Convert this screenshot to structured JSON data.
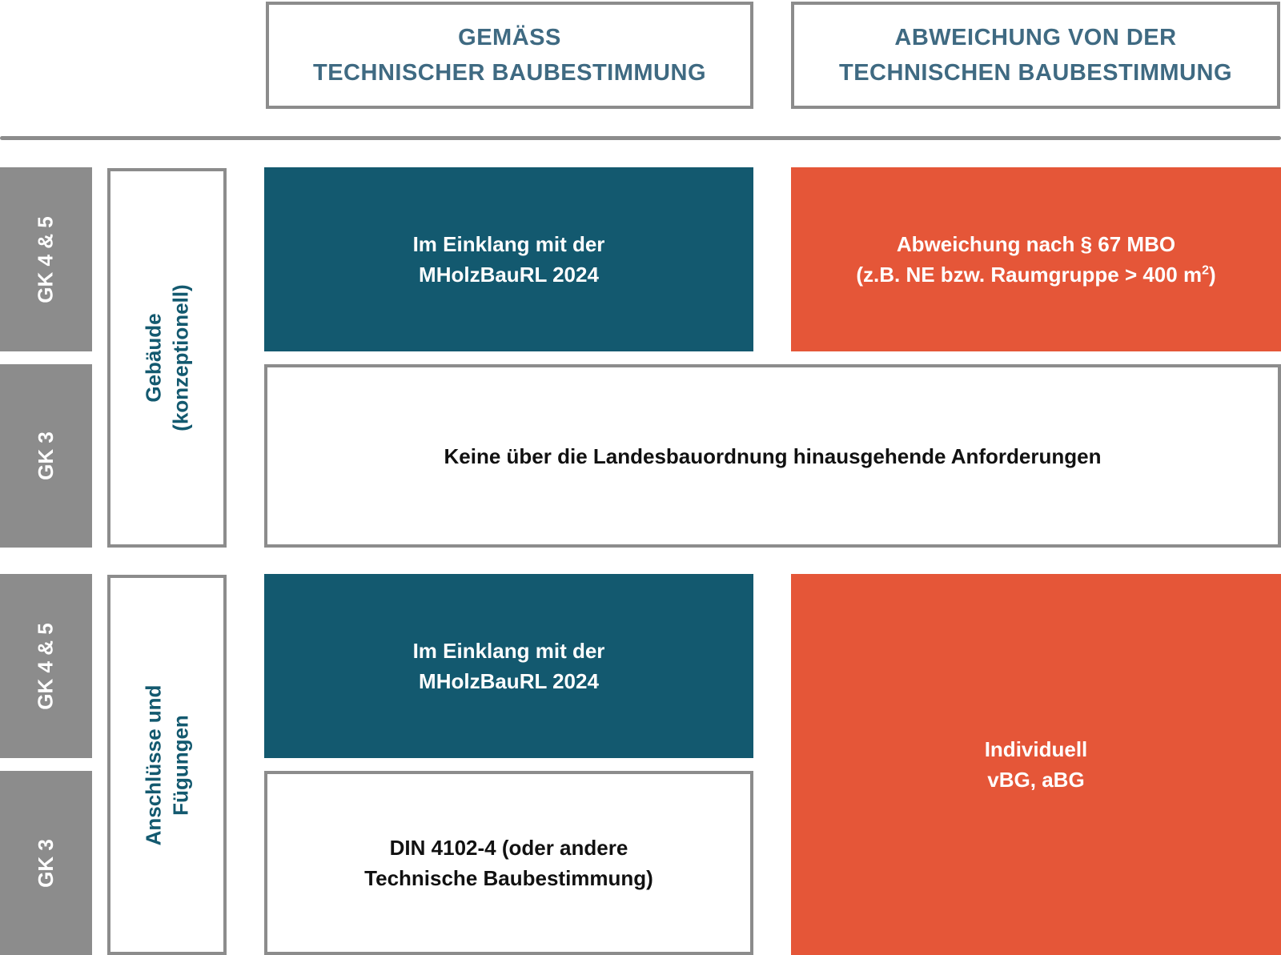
{
  "colors": {
    "teal": "#13596f",
    "orange": "#e55638",
    "grey": "#8c8c8c",
    "header_text": "#3f6a82"
  },
  "headers": {
    "col1": {
      "line1": "GEMÄSS",
      "line2": "TECHNISCHER BAUBESTIMMUNG"
    },
    "col2": {
      "line1": "ABWEICHUNG VON DER",
      "line2": "TECHNISCHEN BAUBESTIMMUNG"
    }
  },
  "sections": [
    {
      "label": {
        "line1": "Gebäude",
        "line2": "(konzeptionell)"
      },
      "gk_top": "GK 4 & 5",
      "gk_bottom": "GK 3",
      "compliant_top": {
        "line1": "Im Einklang mit der",
        "line2": "MHolzBauRL 2024"
      },
      "deviation_top": {
        "line1": "Abweichung nach § 67 MBO",
        "line2": "(z.B. NE bzw. Raumgruppe > 400 m",
        "sup": "2",
        "line2_end": ")"
      },
      "bottom_wide": "Keine über die Landesbauordnung hinausgehende Anforderungen"
    },
    {
      "label": {
        "line1": "Anschlüsse und",
        "line2": "Fügungen"
      },
      "gk_top": "GK 4 & 5",
      "gk_bottom": "GK 3",
      "compliant_top": {
        "line1": "Im Einklang mit der",
        "line2": "MHolzBauRL 2024"
      },
      "compliant_bottom": {
        "line1": "DIN 4102-4 (oder andere",
        "line2": "Technische Baubestimmung)"
      },
      "deviation": {
        "line1": "Individuell",
        "line2": "vBG, aBG"
      }
    }
  ]
}
